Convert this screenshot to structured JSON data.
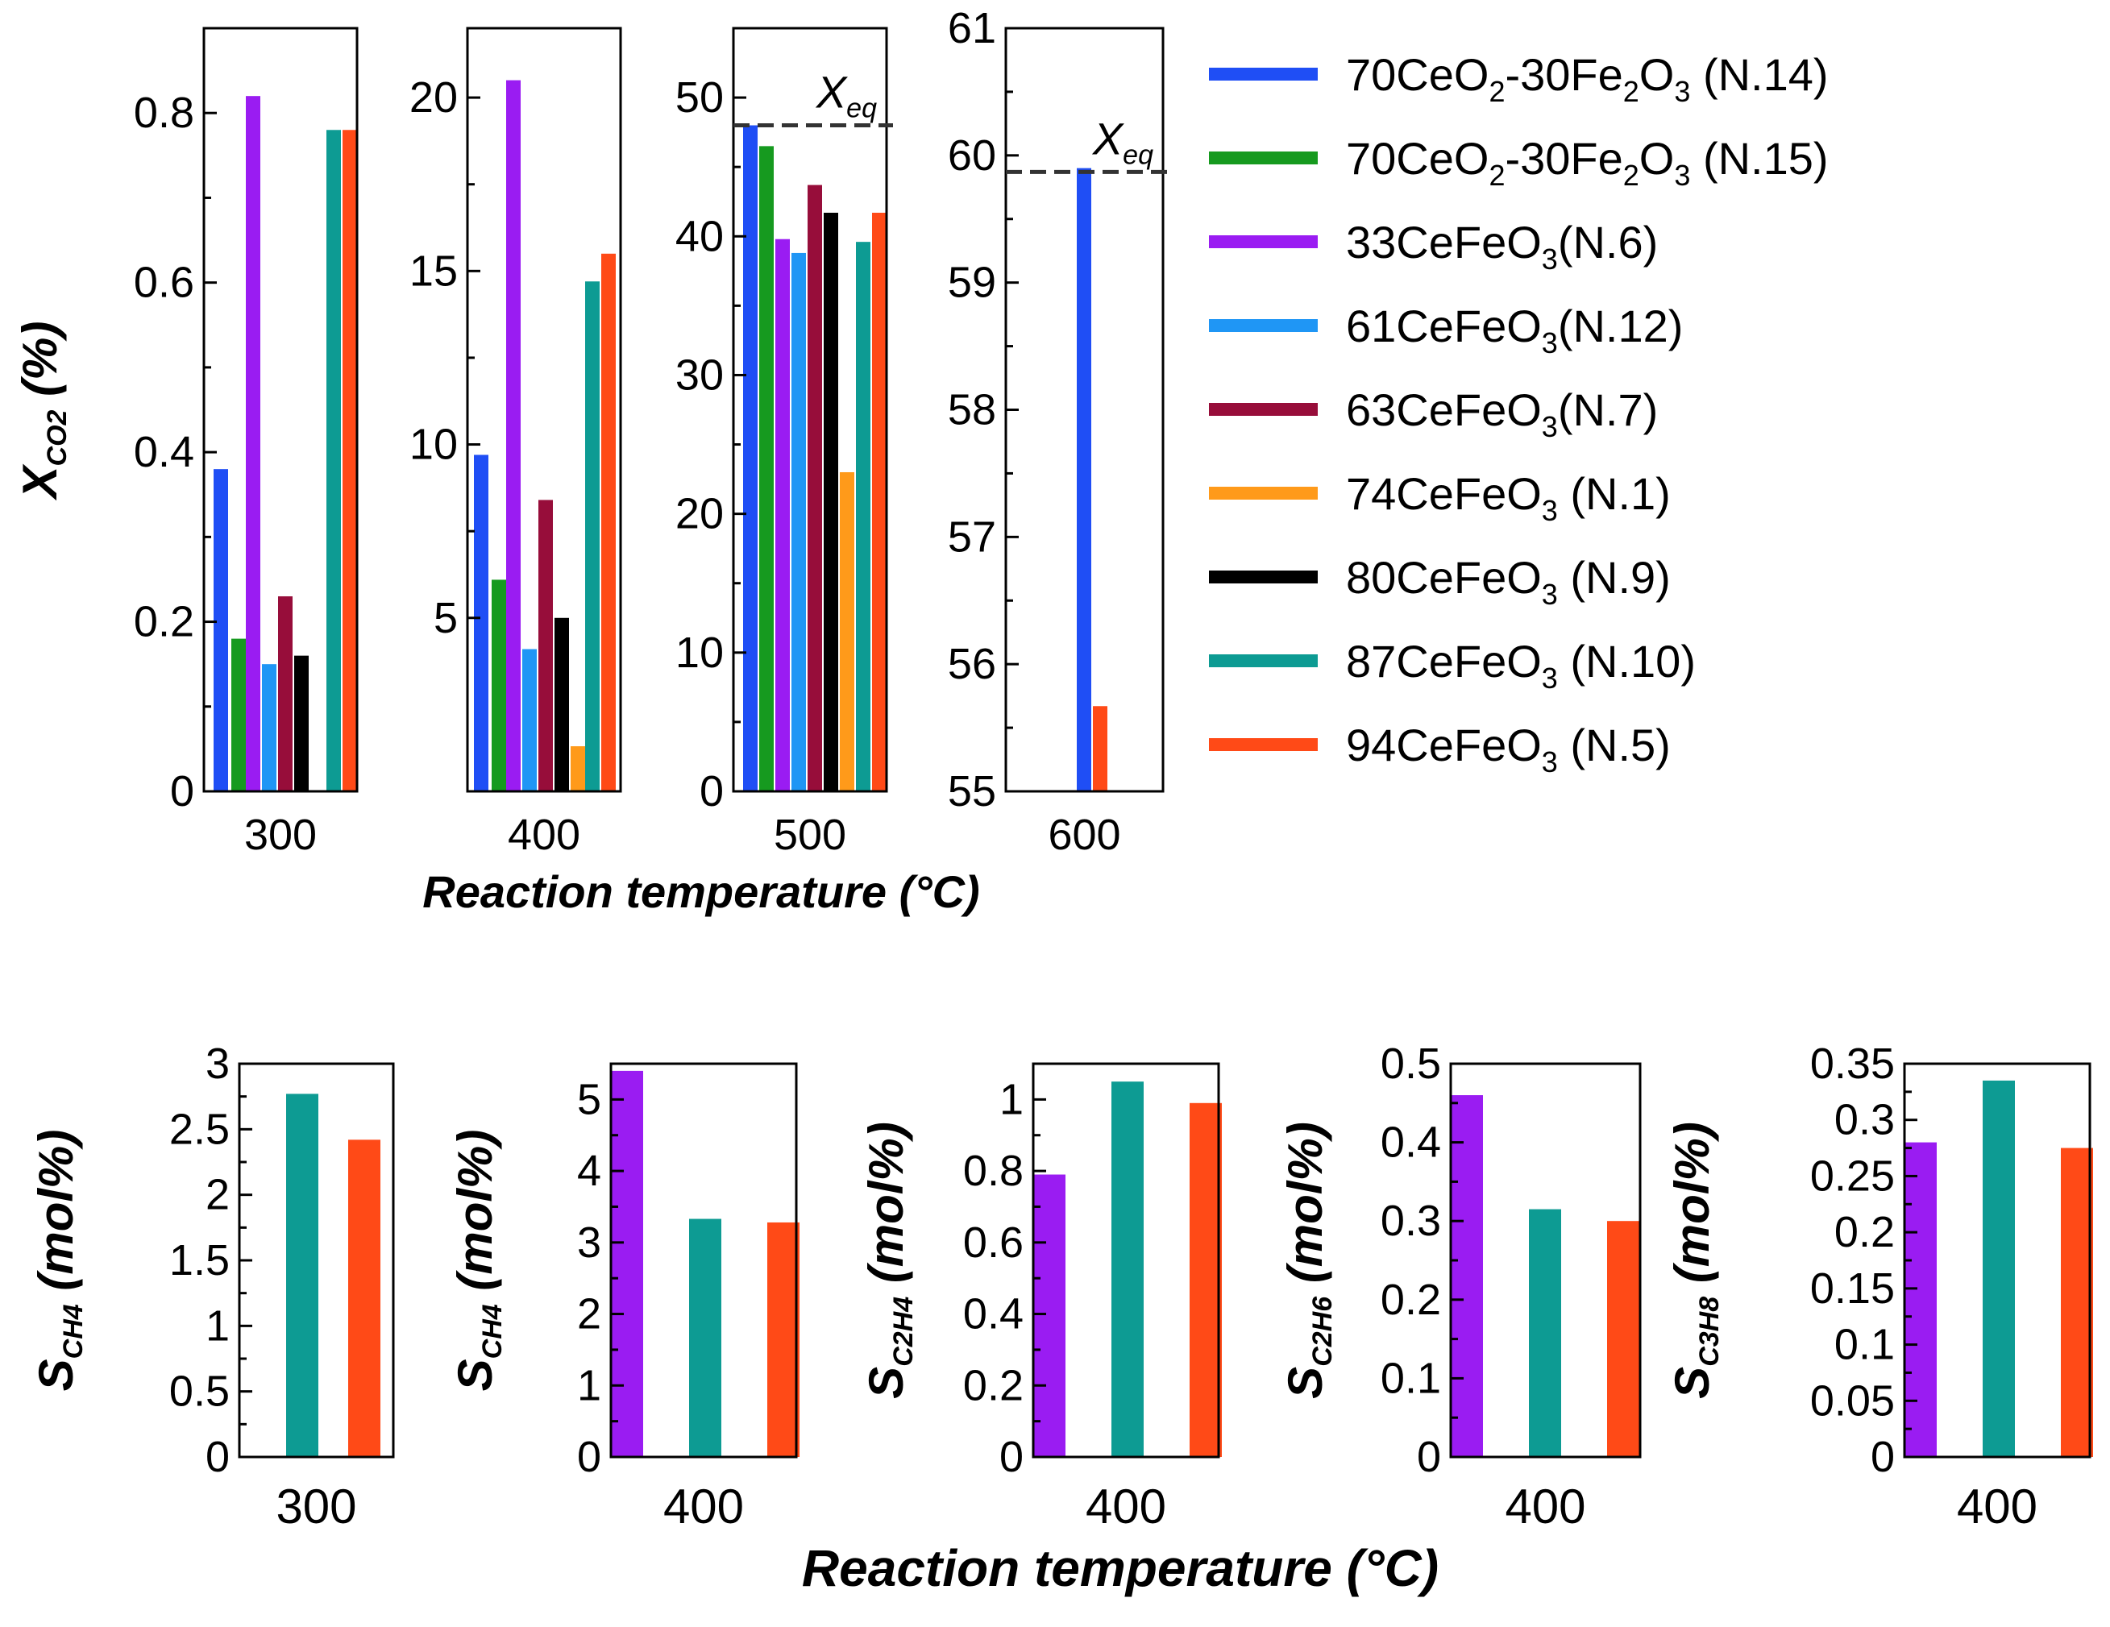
{
  "figure": {
    "top_xlabel": "Reaction temperature (°C)",
    "bottom_xlabel": "Reaction temperature (°C)",
    "eq_label": {
      "base": "X",
      "sub": "eq"
    }
  },
  "legend": [
    {
      "parts": [
        [
          "70CeO",
          ""
        ],
        [
          "2",
          "sub"
        ],
        [
          "-30Fe",
          ""
        ],
        [
          "2",
          "sub"
        ],
        [
          "O",
          ""
        ],
        [
          "3",
          "sub"
        ],
        [
          " (N.14)",
          ""
        ]
      ],
      "color": "#1f4ef5"
    },
    {
      "parts": [
        [
          "70CeO",
          ""
        ],
        [
          "2",
          "sub"
        ],
        [
          "-30Fe",
          ""
        ],
        [
          "2",
          "sub"
        ],
        [
          "O",
          ""
        ],
        [
          "3",
          "sub"
        ],
        [
          " (N.15)",
          ""
        ]
      ],
      "color": "#169a1f"
    },
    {
      "parts": [
        [
          "33CeFeO",
          ""
        ],
        [
          "3",
          "sub"
        ],
        [
          "(N.6)",
          ""
        ]
      ],
      "color": "#9a1cf2"
    },
    {
      "parts": [
        [
          "61CeFeO",
          ""
        ],
        [
          "3",
          "sub"
        ],
        [
          "(N.12)",
          ""
        ]
      ],
      "color": "#1f96f5"
    },
    {
      "parts": [
        [
          "63CeFeO",
          ""
        ],
        [
          "3",
          "sub"
        ],
        [
          "(N.7)",
          ""
        ]
      ],
      "color": "#970d3a"
    },
    {
      "parts": [
        [
          "74CeFeO",
          ""
        ],
        [
          "3",
          "sub"
        ],
        [
          " (N.1)",
          ""
        ]
      ],
      "color": "#ff9a1a"
    },
    {
      "parts": [
        [
          "80CeFeO",
          ""
        ],
        [
          "3",
          "sub"
        ],
        [
          " (N.9)",
          ""
        ]
      ],
      "color": "#000000"
    },
    {
      "parts": [
        [
          "87CeFeO",
          ""
        ],
        [
          "3",
          "sub"
        ],
        [
          " (N.10)",
          ""
        ]
      ],
      "color": "#0d9b93"
    },
    {
      "parts": [
        [
          "94CeFeO",
          ""
        ],
        [
          "3",
          "sub"
        ],
        [
          " (N.5)",
          ""
        ]
      ],
      "color": "#ff4a17"
    }
  ],
  "chart_data": [
    {
      "id": "conv-300",
      "type": "bar",
      "title": "",
      "xlabel": "300",
      "ylabel": "X",
      "ylabel_sub": "CO2",
      "ylabel_suffix": " (%)",
      "ylim": [
        0,
        0.9
      ],
      "yticks": [
        "0",
        "0.2",
        "0.4",
        "0.6",
        "0.8"
      ],
      "bars": [
        {
          "series": "70CeO2-30Fe2O3 (N.14)",
          "color": "#1f4ef5",
          "value": 0.38
        },
        {
          "series": "70CeO2-30Fe2O3 (N.15)",
          "color": "#169a1f",
          "value": 0.18
        },
        {
          "series": "33CeFeO3 (N.6)",
          "color": "#9a1cf2",
          "value": 0.82
        },
        {
          "series": "61CeFeO3 (N.12)",
          "color": "#1f96f5",
          "value": 0.15
        },
        {
          "series": "63CeFeO3 (N.7)",
          "color": "#970d3a",
          "value": 0.23
        },
        {
          "series": "80CeFeO3 (N.9)",
          "color": "#000000",
          "value": 0.16
        },
        {
          "series": "87CeFeO3 (N.10)",
          "color": "#0d9b93",
          "value": 0.78
        },
        {
          "series": "94CeFeO3 (N.5)",
          "color": "#ff4a17",
          "value": 0.78
        }
      ]
    },
    {
      "id": "conv-400",
      "type": "bar",
      "title": "",
      "xlabel": "400",
      "ylim": [
        0,
        22
      ],
      "yticks": [
        "5",
        "10",
        "15",
        "20"
      ],
      "bars": [
        {
          "series": "70CeO2-30Fe2O3 (N.14)",
          "color": "#1f4ef5",
          "value": 9.7
        },
        {
          "series": "70CeO2-30Fe2O3 (N.15)",
          "color": "#169a1f",
          "value": 6.1
        },
        {
          "series": "33CeFeO3 (N.6)",
          "color": "#9a1cf2",
          "value": 20.5
        },
        {
          "series": "61CeFeO3 (N.12)",
          "color": "#1f96f5",
          "value": 4.1
        },
        {
          "series": "63CeFeO3 (N.7)",
          "color": "#970d3a",
          "value": 8.4
        },
        {
          "series": "80CeFeO3 (N.9)",
          "color": "#000000",
          "value": 5.0
        },
        {
          "series": "74CeFeO3 (N.1)",
          "color": "#ff9a1a",
          "value": 1.3
        },
        {
          "series": "87CeFeO3 (N.10)",
          "color": "#0d9b93",
          "value": 14.7
        },
        {
          "series": "94CeFeO3 (N.5)",
          "color": "#ff4a17",
          "value": 15.5
        }
      ]
    },
    {
      "id": "conv-500",
      "type": "bar",
      "title": "",
      "xlabel": "500",
      "ylim": [
        0,
        55
      ],
      "yticks": [
        "0",
        "10",
        "20",
        "30",
        "40",
        "50"
      ],
      "eq_value": 48,
      "bars": [
        {
          "series": "70CeO2-30Fe2O3 (N.14)",
          "color": "#1f4ef5",
          "value": 48
        },
        {
          "series": "70CeO2-30Fe2O3 (N.15)",
          "color": "#169a1f",
          "value": 46.5
        },
        {
          "series": "33CeFeO3 (N.6)",
          "color": "#9a1cf2",
          "value": 39.8
        },
        {
          "series": "61CeFeO3 (N.12)",
          "color": "#1f96f5",
          "value": 38.8
        },
        {
          "series": "63CeFeO3 (N.7)",
          "color": "#970d3a",
          "value": 43.7
        },
        {
          "series": "80CeFeO3 (N.9)",
          "color": "#000000",
          "value": 41.7
        },
        {
          "series": "74CeFeO3 (N.1)",
          "color": "#ff9a1a",
          "value": 23.0
        },
        {
          "series": "87CeFeO3 (N.10)",
          "color": "#0d9b93",
          "value": 39.6
        },
        {
          "series": "94CeFeO3 (N.5)",
          "color": "#ff4a17",
          "value": 41.7
        }
      ]
    },
    {
      "id": "conv-600",
      "type": "bar",
      "title": "",
      "xlabel": "600",
      "ylim": [
        55,
        61
      ],
      "yticks": [
        "55",
        "56",
        "57",
        "58",
        "59",
        "60",
        "61"
      ],
      "eq_value": 59.87,
      "bars": [
        {
          "series": "70CeO2-30Fe2O3 (N.14)",
          "color": "#1f4ef5",
          "value": 59.9
        },
        {
          "series": "94CeFeO3 (N.5)",
          "color": "#ff4a17",
          "value": 55.67
        }
      ]
    },
    {
      "id": "sel-ch4-300",
      "type": "bar",
      "title": "",
      "xlabel": "300",
      "ylabel": "S",
      "ylabel_sub": "CH4",
      "ylabel_suffix": " (mol%)",
      "ylim": [
        0,
        3
      ],
      "yticks": [
        "0",
        "0.5",
        "1",
        "1.5",
        "2",
        "2.5",
        "3"
      ],
      "bars": [
        {
          "series": "87CeFeO3 (N.10)",
          "color": "#0d9b93",
          "value": 2.77
        },
        {
          "series": "94CeFeO3 (N.5)",
          "color": "#ff4a17",
          "value": 2.42
        }
      ]
    },
    {
      "id": "sel-ch4-400",
      "type": "bar",
      "title": "",
      "xlabel": "400",
      "ylabel": "S",
      "ylabel_sub": "CH4",
      "ylabel_suffix": " (mol%)",
      "ylim": [
        0,
        5.5
      ],
      "yticks": [
        "0",
        "1",
        "2",
        "3",
        "4",
        "5"
      ],
      "bars": [
        {
          "series": "33CeFeO3 (N.6)",
          "color": "#9a1cf2",
          "value": 5.4
        },
        {
          "series": "87CeFeO3 (N.10)",
          "color": "#0d9b93",
          "value": 3.33
        },
        {
          "series": "94CeFeO3 (N.5)",
          "color": "#ff4a17",
          "value": 3.28
        }
      ]
    },
    {
      "id": "sel-c2h4-400",
      "type": "bar",
      "title": "",
      "xlabel": "400",
      "ylabel": "S",
      "ylabel_sub": "C2H4",
      "ylabel_suffix": " (mol%)",
      "ylim": [
        0,
        1.1
      ],
      "yticks": [
        "0",
        "0.2",
        "0.4",
        "0.6",
        "0.8",
        "1"
      ],
      "bars": [
        {
          "series": "33CeFeO3 (N.6)",
          "color": "#9a1cf2",
          "value": 0.79
        },
        {
          "series": "87CeFeO3 (N.10)",
          "color": "#0d9b93",
          "value": 1.05
        },
        {
          "series": "94CeFeO3 (N.5)",
          "color": "#ff4a17",
          "value": 0.99
        }
      ]
    },
    {
      "id": "sel-c2h6-400",
      "type": "bar",
      "title": "",
      "xlabel": "400",
      "ylabel": "S",
      "ylabel_sub": "C2H6",
      "ylabel_suffix": " (mol%)",
      "ylim": [
        0,
        0.5
      ],
      "yticks": [
        "0",
        "0.1",
        "0.2",
        "0.3",
        "0.4",
        "0.5"
      ],
      "bars": [
        {
          "series": "33CeFeO3 (N.6)",
          "color": "#9a1cf2",
          "value": 0.46
        },
        {
          "series": "87CeFeO3 (N.10)",
          "color": "#0d9b93",
          "value": 0.315
        },
        {
          "series": "94CeFeO3 (N.5)",
          "color": "#ff4a17",
          "value": 0.3
        }
      ]
    },
    {
      "id": "sel-c3h8-400",
      "type": "bar",
      "title": "",
      "xlabel": "400",
      "ylabel": "S",
      "ylabel_sub": "C3H8",
      "ylabel_suffix": " (mol%)",
      "ylim": [
        0,
        0.35
      ],
      "yticks": [
        "0",
        "0.05",
        "0.1",
        "0.15",
        "0.2",
        "0.25",
        "0.3",
        "0.35"
      ],
      "bars": [
        {
          "series": "33CeFeO3 (N.6)",
          "color": "#9a1cf2",
          "value": 0.28
        },
        {
          "series": "87CeFeO3 (N.10)",
          "color": "#0d9b93",
          "value": 0.335
        },
        {
          "series": "94CeFeO3 (N.5)",
          "color": "#ff4a17",
          "value": 0.275
        }
      ]
    }
  ]
}
